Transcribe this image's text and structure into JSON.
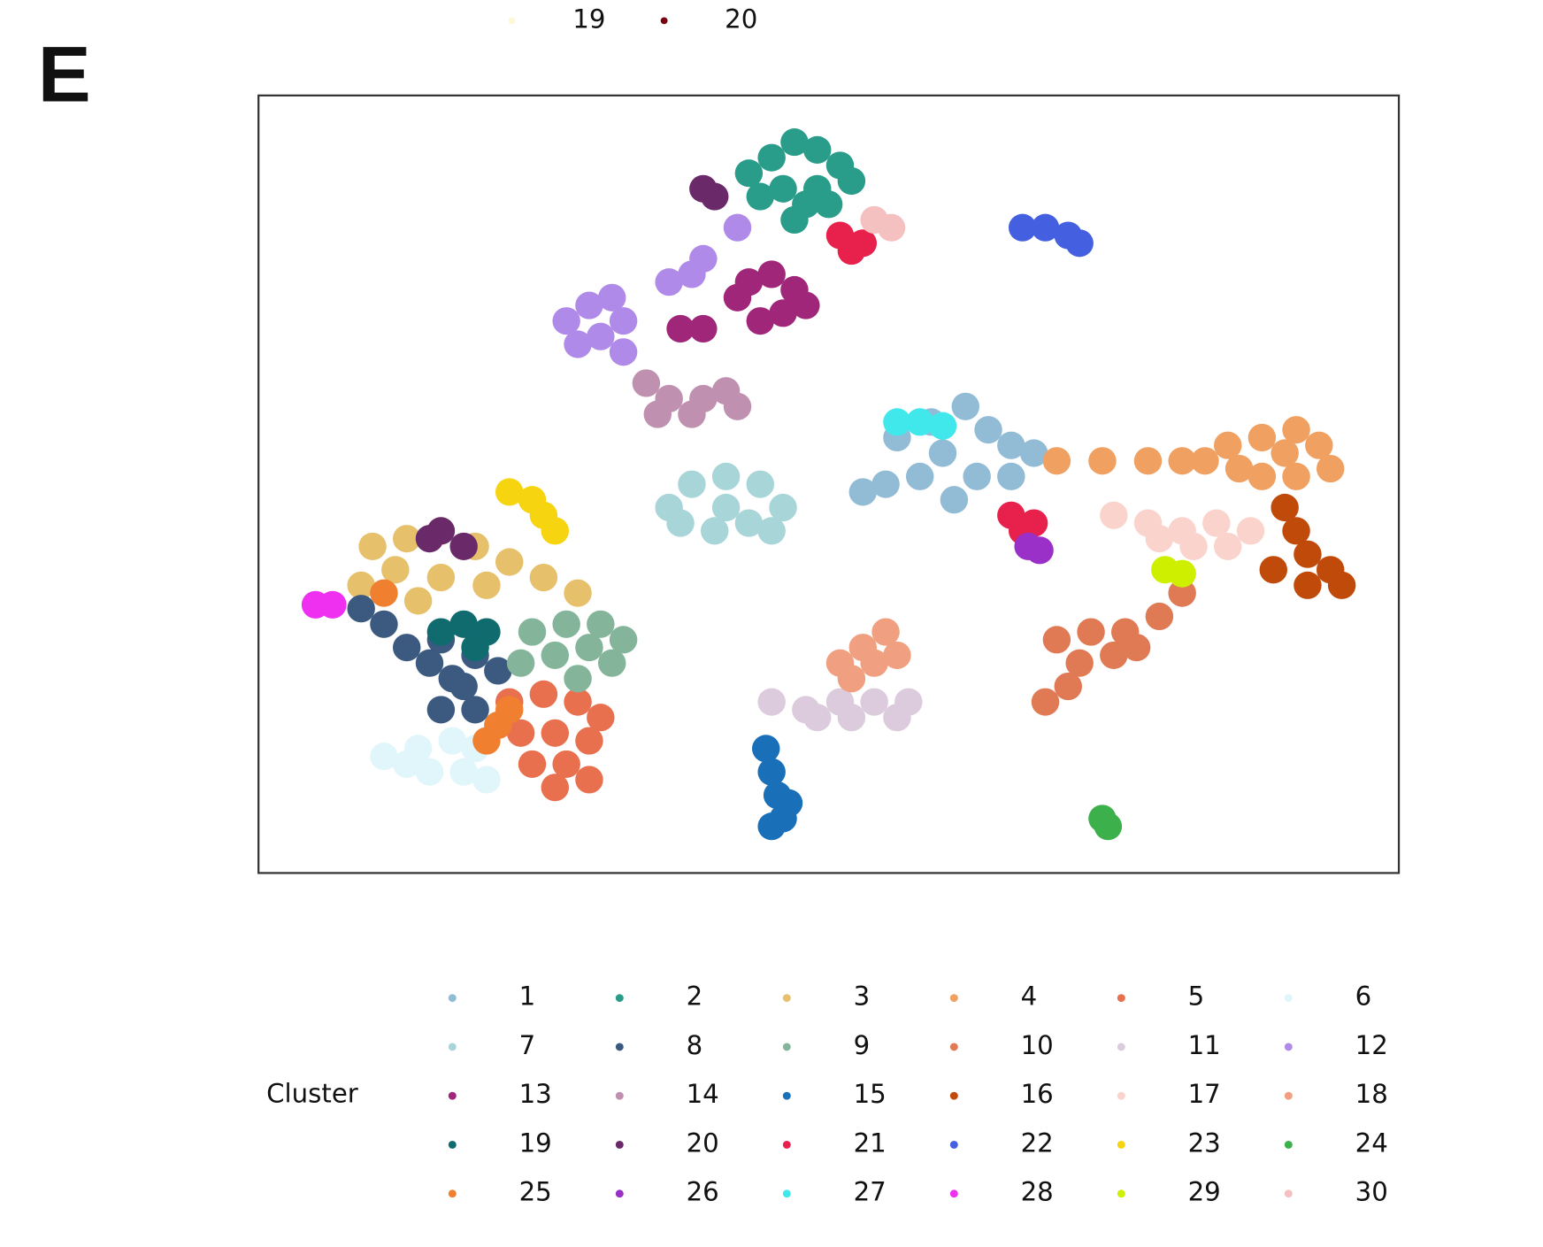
{
  "chart_data": {
    "type": "scatter",
    "panel_label": "E",
    "legend_title": "Cluster",
    "top_legend": [
      {
        "name": "19",
        "color": "#fdf8d8"
      },
      {
        "name": "20",
        "color": "#7a0010"
      }
    ],
    "xlim": [
      0,
      100
    ],
    "ylim": [
      0,
      100
    ],
    "series": [
      {
        "name": "1",
        "color": "#92bcd6",
        "x": [
          56,
          59,
          62,
          64,
          66,
          60,
          63,
          58,
          55,
          61,
          66,
          68,
          53
        ],
        "y": [
          56,
          58,
          60,
          57,
          55,
          54,
          51,
          51,
          50,
          48,
          51,
          54,
          49
        ]
      },
      {
        "name": "2",
        "color": "#2a9d8a",
        "x": [
          43,
          45,
          47,
          49,
          51,
          52,
          49,
          46,
          44,
          48,
          47,
          50
        ],
        "y": [
          90,
          92,
          94,
          93,
          91,
          89,
          88,
          88,
          87,
          86,
          84,
          86
        ]
      },
      {
        "name": "3",
        "color": "#e6c06a",
        "x": [
          10,
          13,
          16,
          19,
          22,
          25,
          28,
          12,
          16,
          20,
          9,
          14
        ],
        "y": [
          42,
          43,
          44,
          42,
          40,
          38,
          36,
          39,
          38,
          37,
          37,
          35
        ]
      },
      {
        "name": "4",
        "color": "#f0a060",
        "x": [
          85,
          88,
          91,
          93,
          94,
          91,
          88,
          86,
          90,
          83,
          70,
          74,
          78,
          81
        ],
        "y": [
          55,
          56,
          57,
          55,
          52,
          51,
          51,
          52,
          54,
          53,
          53,
          53,
          53,
          53
        ]
      },
      {
        "name": "5",
        "color": "#e8704e",
        "x": [
          22,
          25,
          28,
          30,
          23,
          26,
          29,
          24,
          27,
          29,
          26
        ],
        "y": [
          22,
          23,
          22,
          20,
          18,
          18,
          17,
          14,
          14,
          12,
          11
        ]
      },
      {
        "name": "6",
        "color": "#e0f6fa",
        "x": [
          11,
          14,
          17,
          19,
          15,
          18,
          20,
          13
        ],
        "y": [
          15,
          16,
          17,
          16,
          13,
          13,
          12,
          14
        ]
      },
      {
        "name": "7",
        "color": "#a8d5d8",
        "x": [
          36,
          38,
          41,
          44,
          46,
          43,
          40,
          37,
          45,
          41
        ],
        "y": [
          47,
          50,
          51,
          50,
          47,
          45,
          44,
          45,
          44,
          47
        ]
      },
      {
        "name": "8",
        "color": "#3c5a80",
        "x": [
          9,
          11,
          13,
          15,
          17,
          16,
          19,
          18,
          21,
          16,
          19
        ],
        "y": [
          34,
          32,
          29,
          27,
          25,
          30,
          28,
          24,
          26,
          21,
          21
        ]
      },
      {
        "name": "9",
        "color": "#84b59a",
        "x": [
          24,
          27,
          30,
          32,
          29,
          26,
          31,
          28,
          23
        ],
        "y": [
          31,
          32,
          32,
          30,
          29,
          28,
          27,
          25,
          27
        ]
      },
      {
        "name": "10",
        "color": "#e07a55",
        "x": [
          70,
          73,
          76,
          79,
          81,
          75,
          72,
          71,
          69,
          77
        ],
        "y": [
          30,
          31,
          31,
          33,
          36,
          28,
          27,
          24,
          22,
          29
        ]
      },
      {
        "name": "11",
        "color": "#dccbdc",
        "x": [
          45,
          48,
          51,
          54,
          57,
          56,
          52,
          49
        ],
        "y": [
          22,
          21,
          22,
          22,
          22,
          20,
          20,
          20
        ]
      },
      {
        "name": "12",
        "color": "#b08ae8",
        "x": [
          27,
          29,
          31,
          32,
          30,
          28,
          32,
          36,
          39,
          42,
          38
        ],
        "y": [
          71,
          73,
          74,
          71,
          69,
          68,
          67,
          76,
          79,
          83,
          77
        ]
      },
      {
        "name": "13",
        "color": "#a0267a",
        "x": [
          43,
          45,
          47,
          46,
          44,
          48,
          42,
          39,
          37
        ],
        "y": [
          76,
          77,
          75,
          72,
          71,
          73,
          74,
          70,
          70
        ]
      },
      {
        "name": "14",
        "color": "#c090b0",
        "x": [
          34,
          36,
          39,
          41,
          42,
          38,
          35
        ],
        "y": [
          63,
          61,
          61,
          62,
          60,
          59,
          59
        ]
      },
      {
        "name": "15",
        "color": "#1a70b8",
        "x": [
          44.5,
          45,
          45.5,
          46,
          45,
          46.5
        ],
        "y": [
          16,
          13,
          10,
          7,
          6,
          9
        ]
      },
      {
        "name": "16",
        "color": "#c04a0a",
        "x": [
          90,
          91,
          92,
          94,
          95,
          92,
          89
        ],
        "y": [
          47,
          44,
          41,
          39,
          37,
          37,
          39
        ]
      },
      {
        "name": "17",
        "color": "#fad4cc",
        "x": [
          75,
          78,
          81,
          84,
          87,
          85,
          82,
          79
        ],
        "y": [
          46,
          45,
          44,
          45,
          44,
          42,
          42,
          43
        ]
      },
      {
        "name": "18",
        "color": "#f0a080",
        "x": [
          51,
          53,
          55,
          54,
          56,
          52
        ],
        "y": [
          27,
          29,
          31,
          27,
          28,
          25
        ]
      },
      {
        "name": "19",
        "color": "#0f6b6e",
        "x": [
          16,
          18,
          20,
          19
        ],
        "y": [
          31,
          32,
          31,
          29
        ]
      },
      {
        "name": "20",
        "color": "#6a2a6a",
        "x": [
          15,
          16,
          18,
          39,
          40
        ],
        "y": [
          43,
          44,
          42,
          88,
          87
        ]
      },
      {
        "name": "21",
        "color": "#e8204c",
        "x": [
          51,
          53,
          52,
          66,
          67,
          68
        ],
        "y": [
          82,
          81,
          80,
          46,
          44,
          45
        ]
      },
      {
        "name": "22",
        "color": "#4460e0",
        "x": [
          67,
          69,
          71,
          72
        ],
        "y": [
          83,
          83,
          82,
          81
        ]
      },
      {
        "name": "23",
        "color": "#f6d410",
        "x": [
          22,
          24,
          25,
          26
        ],
        "y": [
          49,
          48,
          46,
          44
        ]
      },
      {
        "name": "24",
        "color": "#3cb04a",
        "x": [
          74,
          74.5
        ],
        "y": [
          7,
          6
        ]
      },
      {
        "name": "25",
        "color": "#f08030",
        "x": [
          11,
          22,
          21,
          20
        ],
        "y": [
          36,
          21,
          19,
          17
        ]
      },
      {
        "name": "26",
        "color": "#9a30c8",
        "x": [
          67.5,
          68.5
        ],
        "y": [
          42,
          41.5
        ]
      },
      {
        "name": "27",
        "color": "#40e8ec",
        "x": [
          56,
          58,
          60
        ],
        "y": [
          58,
          58,
          57.5
        ]
      },
      {
        "name": "28",
        "color": "#f030f0",
        "x": [
          5,
          6.5
        ],
        "y": [
          34.5,
          34.5
        ]
      },
      {
        "name": "29",
        "color": "#cef000",
        "x": [
          79.5,
          81
        ],
        "y": [
          39,
          38.5
        ]
      },
      {
        "name": "30",
        "color": "#f5c0c0",
        "x": [
          54,
          55.5
        ],
        "y": [
          84,
          83
        ]
      }
    ]
  }
}
